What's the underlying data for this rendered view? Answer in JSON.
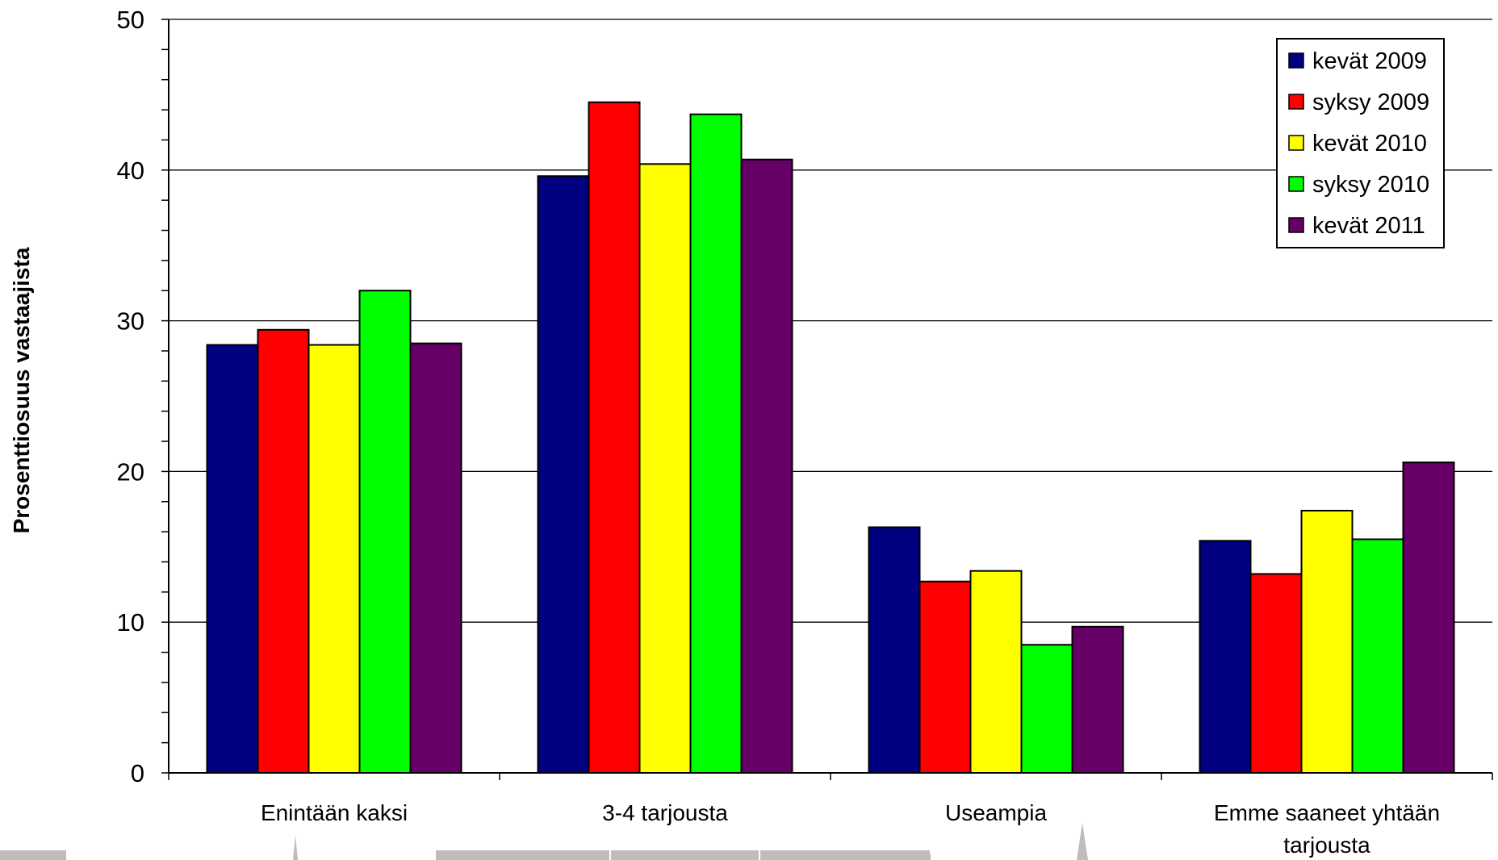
{
  "chart_data": {
    "type": "bar",
    "ylabel": "Prosenttiosuus vastaajista",
    "xlabel": "",
    "ylim": [
      0,
      50
    ],
    "yticks": [
      0,
      10,
      20,
      30,
      40,
      50
    ],
    "grid": true,
    "legend_position": "top-right",
    "categories": [
      [
        "Enintään kaksi"
      ],
      [
        "3-4 tarjousta"
      ],
      [
        "Useampia"
      ],
      [
        "Emme saaneet yhtään",
        "tarjousta"
      ]
    ],
    "series": [
      {
        "name": "kevät 2009",
        "color": "#000080",
        "values": [
          28.4,
          39.6,
          16.3,
          15.4
        ]
      },
      {
        "name": "syksy 2009",
        "color": "#ff0000",
        "values": [
          29.4,
          44.5,
          12.7,
          13.2
        ]
      },
      {
        "name": "kevät 2010",
        "color": "#ffff00",
        "values": [
          28.4,
          40.4,
          13.4,
          17.4
        ]
      },
      {
        "name": "syksy 2010",
        "color": "#00ff00",
        "values": [
          32.0,
          43.7,
          8.5,
          15.5
        ]
      },
      {
        "name": "kevät 2011",
        "color": "#660066",
        "values": [
          28.5,
          40.7,
          9.7,
          20.6
        ]
      }
    ]
  }
}
